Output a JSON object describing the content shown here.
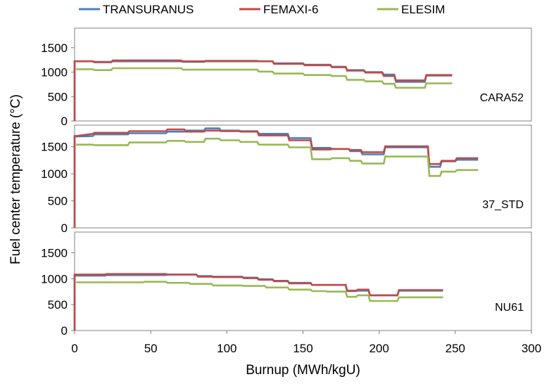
{
  "chart_data": {
    "type": "line",
    "xlabel": "Burnup (MWh/kgU)",
    "ylabel": "Fuel center temperature (°C)",
    "xlim": [
      0,
      300
    ],
    "ylim": [
      0,
      1900
    ],
    "xticks": [
      "0",
      "50",
      "100",
      "150",
      "200",
      "250",
      "300"
    ],
    "yticks": [
      "0",
      "500",
      "1000",
      "1500"
    ],
    "legend_position": "top",
    "series_styles": [
      {
        "name": "TRANSURANUS",
        "color": "#4a7ebb"
      },
      {
        "name": "FEMAXI-6",
        "color": "#be4b48"
      },
      {
        "name": "ELESIM",
        "color": "#98b954"
      }
    ],
    "panels": [
      {
        "label": "CARA52",
        "series": [
          {
            "name": "TRANSURANUS",
            "x": [
              0,
              0,
              1,
              12,
              13,
              24,
              25,
              70,
              71,
              85,
              86,
              120,
              121,
              130,
              131,
              150,
              151,
              168,
              169,
              178,
              179,
              190,
              191,
              202,
              203,
              210,
              211,
              222,
              223,
              230,
              231,
              248
            ],
            "y": [
              0,
              1220,
              1220,
              1220,
              1210,
              1210,
              1220,
              1220,
              1210,
              1210,
              1220,
              1220,
              1220,
              1220,
              1180,
              1180,
              1150,
              1150,
              1110,
              1110,
              1040,
              1040,
              1000,
              1000,
              950,
              950,
              800,
              800,
              800,
              800,
              930,
              930
            ]
          },
          {
            "name": "FEMAXI-6",
            "x": [
              0,
              0,
              1,
              12,
              13,
              24,
              25,
              70,
              71,
              85,
              86,
              120,
              121,
              130,
              131,
              150,
              151,
              168,
              169,
              178,
              179,
              190,
              191,
              202,
              203,
              210,
              211,
              222,
              223,
              230,
              231,
              248
            ],
            "y": [
              0,
              1220,
              1220,
              1220,
              1200,
              1200,
              1240,
              1240,
              1220,
              1220,
              1230,
              1230,
              1220,
              1220,
              1170,
              1170,
              1140,
              1140,
              1100,
              1100,
              1030,
              1030,
              990,
              990,
              920,
              920,
              830,
              830,
              830,
              830,
              940,
              940
            ]
          },
          {
            "name": "ELESIM",
            "x": [
              1,
              12,
              13,
              24,
              25,
              70,
              71,
              85,
              86,
              120,
              121,
              130,
              131,
              150,
              151,
              168,
              169,
              178,
              179,
              190,
              191,
              202,
              203,
              210,
              211,
              222,
              223,
              230,
              231,
              248
            ],
            "y": [
              1060,
              1060,
              1040,
              1040,
              1080,
              1080,
              1050,
              1050,
              1050,
              1050,
              1010,
              1010,
              970,
              970,
              940,
              940,
              920,
              920,
              840,
              840,
              810,
              810,
              760,
              760,
              680,
              680,
              680,
              680,
              770,
              770
            ]
          }
        ]
      },
      {
        "label": "37_STD",
        "series": [
          {
            "name": "TRANSURANUS",
            "x": [
              0,
              0,
              1,
              12,
              13,
              35,
              36,
              60,
              61,
              72,
              73,
              85,
              86,
              95,
              96,
              108,
              109,
              120,
              121,
              140,
              141,
              155,
              156,
              168,
              169,
              180,
              181,
              188,
              189,
              203,
              204,
              232,
              233,
              240,
              241,
              250,
              251,
              265
            ],
            "y": [
              0,
              1690,
              1690,
              1700,
              1730,
              1730,
              1750,
              1750,
              1780,
              1780,
              1800,
              1800,
              1840,
              1840,
              1800,
              1800,
              1790,
              1790,
              1740,
              1740,
              1660,
              1660,
              1480,
              1480,
              1460,
              1460,
              1420,
              1420,
              1360,
              1360,
              1490,
              1490,
              1130,
              1130,
              1230,
              1230,
              1260,
              1260
            ]
          },
          {
            "name": "FEMAXI-6",
            "x": [
              0,
              0,
              1,
              12,
              13,
              35,
              36,
              60,
              61,
              72,
              73,
              85,
              86,
              95,
              96,
              108,
              109,
              120,
              121,
              140,
              141,
              155,
              156,
              168,
              169,
              180,
              181,
              188,
              189,
              203,
              204,
              232,
              233,
              240,
              241,
              250,
              251,
              265
            ],
            "y": [
              0,
              1700,
              1700,
              1740,
              1760,
              1760,
              1790,
              1790,
              1820,
              1820,
              1780,
              1780,
              1800,
              1800,
              1790,
              1790,
              1780,
              1780,
              1710,
              1710,
              1620,
              1620,
              1450,
              1450,
              1460,
              1460,
              1440,
              1440,
              1400,
              1400,
              1510,
              1510,
              1180,
              1180,
              1240,
              1240,
              1290,
              1290
            ]
          },
          {
            "name": "ELESIM",
            "x": [
              1,
              12,
              13,
              35,
              36,
              60,
              61,
              72,
              73,
              85,
              86,
              95,
              96,
              108,
              109,
              120,
              121,
              140,
              141,
              155,
              156,
              168,
              169,
              180,
              181,
              188,
              189,
              203,
              204,
              232,
              233,
              240,
              241,
              250,
              251,
              265
            ],
            "y": [
              1540,
              1540,
              1530,
              1530,
              1580,
              1580,
              1610,
              1610,
              1590,
              1590,
              1650,
              1650,
              1620,
              1620,
              1590,
              1590,
              1540,
              1540,
              1490,
              1490,
              1270,
              1270,
              1290,
              1290,
              1240,
              1240,
              1190,
              1190,
              1320,
              1320,
              960,
              960,
              1040,
              1040,
              1070,
              1070
            ]
          }
        ]
      },
      {
        "label": "NU61",
        "series": [
          {
            "name": "TRANSURANUS",
            "x": [
              0,
              0,
              1,
              20,
              21,
              60,
              61,
              80,
              81,
              90,
              91,
              110,
              111,
              120,
              121,
              130,
              131,
              140,
              141,
              155,
              156,
              178,
              179,
              185,
              186,
              193,
              194,
              212,
              213,
              242
            ],
            "y": [
              0,
              1060,
              1060,
              1060,
              1070,
              1070,
              1080,
              1080,
              1050,
              1050,
              1040,
              1040,
              1020,
              1020,
              990,
              990,
              960,
              960,
              920,
              920,
              880,
              880,
              760,
              760,
              770,
              770,
              680,
              680,
              770,
              770
            ]
          },
          {
            "name": "FEMAXI-6",
            "x": [
              0,
              0,
              1,
              20,
              21,
              60,
              61,
              80,
              81,
              90,
              91,
              110,
              111,
              120,
              121,
              130,
              131,
              140,
              141,
              155,
              156,
              178,
              179,
              185,
              186,
              193,
              194,
              212,
              213,
              242
            ],
            "y": [
              0,
              1080,
              1080,
              1080,
              1090,
              1090,
              1080,
              1080,
              1040,
              1040,
              1030,
              1030,
              1010,
              1010,
              980,
              980,
              950,
              950,
              910,
              910,
              880,
              880,
              770,
              770,
              790,
              790,
              680,
              680,
              780,
              780
            ]
          },
          {
            "name": "ELESIM",
            "x": [
              1,
              20,
              21,
              45,
              46,
              60,
              61,
              75,
              76,
              90,
              91,
              110,
              111,
              125,
              126,
              140,
              141,
              155,
              156,
              165,
              166,
              178,
              179,
              185,
              186,
              193,
              194,
              212,
              213,
              242
            ],
            "y": [
              930,
              930,
              930,
              930,
              940,
              940,
              920,
              920,
              900,
              900,
              870,
              870,
              860,
              860,
              830,
              830,
              790,
              790,
              760,
              760,
              750,
              750,
              650,
              650,
              680,
              680,
              570,
              570,
              640,
              640
            ]
          }
        ]
      }
    ]
  }
}
